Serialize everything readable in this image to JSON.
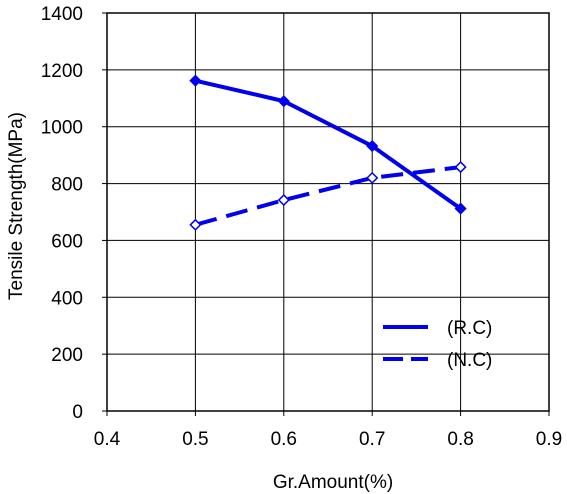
{
  "chart_data": {
    "type": "line",
    "xlabel": "Gr.Amount(%)",
    "ylabel": "Tensile Strength(MPa)",
    "xlim": [
      0.4,
      0.9
    ],
    "ylim": [
      0,
      1400
    ],
    "x_ticks": [
      "0.4",
      "0.5",
      "0.6",
      "0.7",
      "0.8",
      "0.9"
    ],
    "y_ticks": [
      "0",
      "200",
      "400",
      "600",
      "800",
      "1000",
      "1200",
      "1400"
    ],
    "grid": true,
    "legend_position": "bottom-right",
    "series": [
      {
        "name": "(R.C)",
        "line_style": "solid",
        "marker": "diamond",
        "color": "#0000ee",
        "x": [
          0.5,
          0.6,
          0.7,
          0.8
        ],
        "y": [
          1162,
          1090,
          932,
          712
        ]
      },
      {
        "name": "(N.C)",
        "line_style": "dashed",
        "marker": "diamond-open",
        "color": "#0000ee",
        "x": [
          0.5,
          0.6,
          0.7,
          0.8
        ],
        "y": [
          655,
          742,
          820,
          858
        ]
      }
    ]
  }
}
